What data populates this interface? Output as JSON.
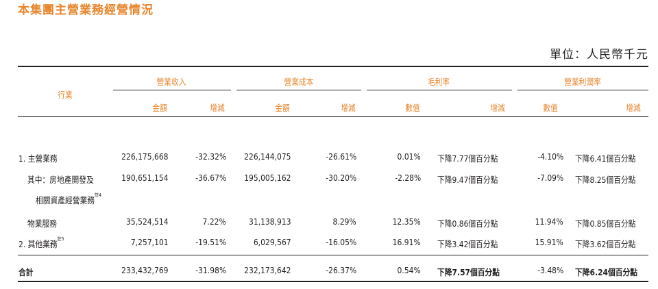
{
  "title": "本集團主營業務經營情況",
  "unit": "單位：人民幣千元",
  "headers": {
    "industry": "行業",
    "revenue": "營業收入",
    "cost": "營業成本",
    "gross_margin": "毛利率",
    "op_margin": "營業利潤率",
    "amount": "金額",
    "change": "增減",
    "value": "數值"
  },
  "rows": [
    {
      "label": "1. 主營業務",
      "rev": "226,175,668",
      "rev_chg": "-32.32%",
      "cost": "226,144,075",
      "cost_chg": "-26.61%",
      "gm": "0.01%",
      "gm_chg": "下降7.77個百分點",
      "om": "-4.10%",
      "om_chg": "下降6.41個百分點"
    },
    {
      "label": "其中：房地產開發及",
      "label2": "相關資產經營業務",
      "note": "註4",
      "rev": "190,651,154",
      "rev_chg": "-36.67%",
      "cost": "195,005,162",
      "cost_chg": "-30.20%",
      "gm": "-2.28%",
      "gm_chg": "下降9.47個百分點",
      "om": "-7.09%",
      "om_chg": "下降8.25個百分點"
    },
    {
      "label": "物業服務",
      "rev": "35,524,514",
      "rev_chg": "7.22%",
      "cost": "31,138,913",
      "cost_chg": "8.29%",
      "gm": "12.35%",
      "gm_chg": "下降0.86個百分點",
      "om": "11.94%",
      "om_chg": "下降0.85個百分點"
    },
    {
      "label": "2. 其他業務",
      "note": "註5",
      "rev": "7,257,101",
      "rev_chg": "-19.51%",
      "cost": "6,029,567",
      "cost_chg": "-16.05%",
      "gm": "16.91%",
      "gm_chg": "下降3.42個百分點",
      "om": "15.91%",
      "om_chg": "下降3.62個百分點"
    }
  ],
  "total": {
    "label": "合計",
    "rev": "233,432,769",
    "rev_chg": "-31.98%",
    "cost": "232,173,642",
    "cost_chg": "-26.37%",
    "gm": "0.54%",
    "gm_chg": "下降7.57個百分點",
    "om": "-3.48%",
    "om_chg": "下降6.24個百分點"
  }
}
